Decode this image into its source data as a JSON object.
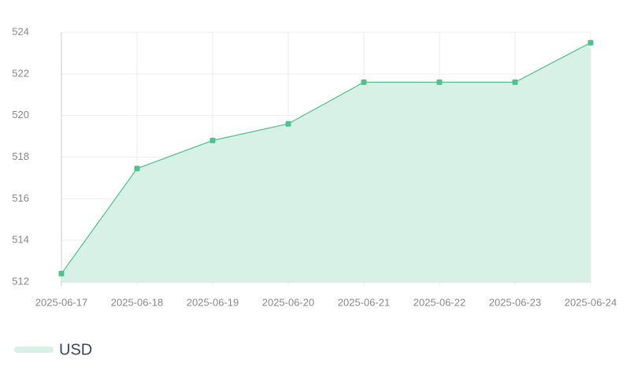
{
  "chart_data": {
    "type": "area",
    "categories": [
      "2025-06-17",
      "2025-06-18",
      "2025-06-19",
      "2025-06-20",
      "2025-06-21",
      "2025-06-22",
      "2025-06-23",
      "2025-06-24"
    ],
    "series": [
      {
        "name": "USD",
        "color": "#4cc38a",
        "fill": "#d7f1e6",
        "values": [
          512.4,
          517.45,
          518.8,
          519.6,
          521.6,
          521.6,
          521.6,
          523.5
        ]
      }
    ],
    "ylim": [
      512,
      524
    ],
    "yticks": [
      512,
      514,
      516,
      518,
      520,
      522,
      524
    ],
    "grid": true,
    "legend": "bottom-left"
  }
}
